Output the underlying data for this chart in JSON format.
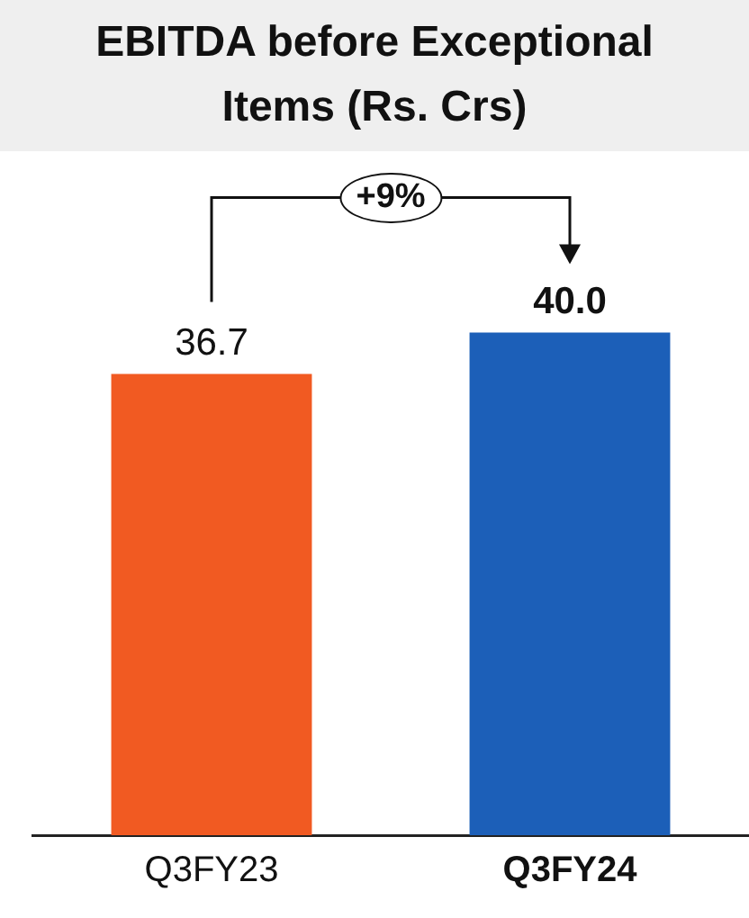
{
  "chart_data": {
    "type": "bar",
    "title": "EBITDA before Exceptional Items (Rs. Crs)",
    "categories": [
      "Q3FY23",
      "Q3FY24"
    ],
    "values": [
      36.7,
      40.0
    ],
    "colors": [
      "#f15a22",
      "#1c5fb8"
    ],
    "value_labels": [
      "36.7",
      "40.0"
    ],
    "ylim": [
      0,
      53
    ],
    "annotations": [
      "+9%"
    ],
    "legend": false
  }
}
